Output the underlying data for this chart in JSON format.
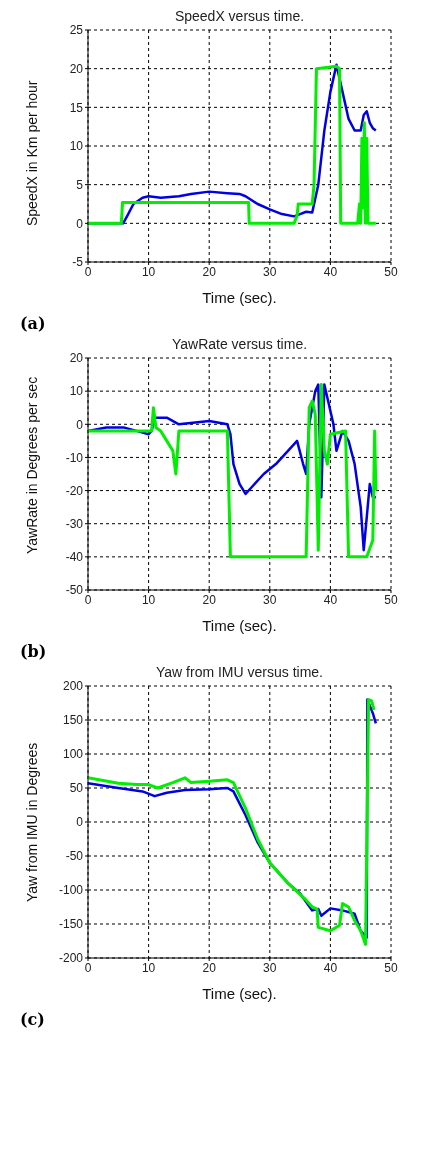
{
  "chart_data": [
    {
      "type": "line",
      "title": "SpeedX versus time.",
      "xlabel": "Time (sec).",
      "ylabel": "SpeedX in Km per hour",
      "annotations": [
        "(a)"
      ],
      "xlim": [
        0,
        50
      ],
      "xticks": [
        0,
        10,
        20,
        30,
        40,
        50
      ],
      "ylim": [
        -5,
        25
      ],
      "yticks": [
        -5,
        0,
        5,
        10,
        15,
        20,
        25
      ],
      "grid": true,
      "legend": false,
      "marker": "none",
      "line_style": "solid",
      "series": [
        {
          "color": "#0000e6",
          "x": [
            0,
            5.8,
            6.5,
            7.5,
            9,
            10,
            12,
            15,
            17,
            20,
            23,
            25,
            26,
            28,
            30,
            32,
            34,
            35,
            36,
            37,
            38,
            39,
            40,
            41,
            42,
            43,
            44,
            45,
            45.5,
            46,
            46.5,
            47,
            47.5
          ],
          "values": [
            0,
            0,
            1,
            2.5,
            3.3,
            3.5,
            3.3,
            3.5,
            3.8,
            4.1,
            3.9,
            3.8,
            3.5,
            2.5,
            1.8,
            1.2,
            0.9,
            1.2,
            1.5,
            1.4,
            5,
            12,
            17,
            20.5,
            17,
            13.5,
            12,
            12,
            14,
            14.5,
            13,
            12.3,
            12
          ]
        },
        {
          "color": "#00ee00",
          "x": [
            0,
            5.5,
            5.7,
            16,
            26.5,
            26.6,
            34,
            34.5,
            34.7,
            37,
            37.3,
            37.7,
            41,
            41.5,
            41.7,
            44.5,
            44.8,
            45,
            45.2,
            45.4,
            45.6,
            45.8,
            46,
            46.2,
            47.5
          ],
          "values": [
            0,
            0,
            2.7,
            2.7,
            2.7,
            0,
            0,
            1,
            2.5,
            2.5,
            5,
            20,
            20.3,
            20,
            0,
            0,
            2.5,
            0,
            11,
            2,
            13,
            0,
            11,
            0,
            0
          ]
        }
      ]
    },
    {
      "type": "line",
      "title": "YawRate versus time.",
      "xlabel": "Time (sec).",
      "ylabel": "YawRate in Degrees per sec",
      "annotations": [
        "(b)"
      ],
      "xlim": [
        0,
        50
      ],
      "xticks": [
        0,
        10,
        20,
        30,
        40,
        50
      ],
      "ylim": [
        -50,
        20
      ],
      "yticks": [
        -50,
        -40,
        -30,
        -20,
        -10,
        0,
        10,
        20
      ],
      "grid": true,
      "legend": false,
      "marker": "none",
      "line_style": "solid",
      "series": [
        {
          "color": "#0000e6",
          "x": [
            0,
            3,
            6,
            8,
            10,
            10.5,
            11,
            13,
            15,
            20,
            23,
            23.5,
            24,
            25,
            26,
            27,
            29,
            31,
            33,
            34.5,
            35.5,
            36,
            36.5,
            37.5,
            38,
            38.5,
            39,
            39.5,
            40.5,
            41,
            42,
            43,
            44,
            45,
            45.5,
            46,
            46.5,
            47,
            47.5
          ],
          "values": [
            -2,
            -1,
            -1,
            -2,
            -3,
            -2,
            2,
            2,
            0,
            1,
            0,
            -3,
            -12,
            -18,
            -21,
            -19,
            -15,
            -12,
            -8,
            -5,
            -12,
            -15,
            0,
            10,
            12,
            -22,
            12,
            8,
            0,
            -8,
            -2,
            -5,
            -12,
            -25,
            -38,
            -28,
            -18,
            -22,
            -22
          ]
        },
        {
          "color": "#00ee00",
          "x": [
            0,
            10.5,
            10.8,
            11.2,
            12,
            13,
            14,
            14.5,
            15,
            23,
            23.5,
            36,
            36.5,
            37,
            37.5,
            38,
            38.5,
            39,
            39.5,
            40,
            42.5,
            43,
            46,
            47,
            47.3,
            47.5
          ],
          "values": [
            -2,
            -2,
            5,
            -1,
            -2,
            -5,
            -8,
            -15,
            -2,
            -2,
            -40,
            -40,
            5,
            7,
            3,
            -38,
            12,
            -8,
            -12,
            -3,
            -2,
            -40,
            -40,
            -35,
            -2,
            -20
          ]
        }
      ]
    },
    {
      "type": "line",
      "title": "Yaw from IMU versus time.",
      "xlabel": "Time (sec).",
      "ylabel": "Yaw from IMU in Degrees",
      "annotations": [
        "(c)"
      ],
      "xlim": [
        0,
        50
      ],
      "xticks": [
        0,
        10,
        20,
        30,
        40,
        50
      ],
      "ylim": [
        -200,
        200
      ],
      "yticks": [
        -200,
        -150,
        -100,
        -50,
        0,
        50,
        100,
        150,
        200
      ],
      "grid": true,
      "legend": false,
      "marker": "none",
      "line_style": "solid",
      "series": [
        {
          "color": "#0000e6",
          "x": [
            0,
            5,
            9,
            11,
            13,
            16,
            20,
            23,
            24,
            26,
            28,
            30,
            33,
            35,
            37,
            38,
            38.5,
            40,
            42,
            44,
            45,
            46,
            46.1,
            47,
            47.5
          ],
          "values": [
            57,
            50,
            45,
            38,
            43,
            47,
            48,
            50,
            45,
            10,
            -30,
            -60,
            -90,
            -105,
            -130,
            -128,
            -138,
            -127,
            -130,
            -135,
            -160,
            -170,
            180,
            160,
            145
          ]
        },
        {
          "color": "#00ee00",
          "x": [
            0,
            5,
            8,
            10,
            11.5,
            14,
            16,
            17,
            20,
            23,
            24,
            26,
            28,
            30,
            33,
            36,
            37,
            37.8,
            38,
            40,
            41.5,
            42,
            43,
            44,
            45,
            45.8,
            46.3,
            46.8,
            47.2
          ],
          "values": [
            65,
            57,
            55,
            55,
            50,
            58,
            65,
            58,
            60,
            62,
            58,
            20,
            -25,
            -60,
            -90,
            -115,
            -125,
            -128,
            -155,
            -160,
            -152,
            -120,
            -125,
            -145,
            -160,
            -180,
            180,
            178,
            165
          ]
        }
      ]
    }
  ]
}
